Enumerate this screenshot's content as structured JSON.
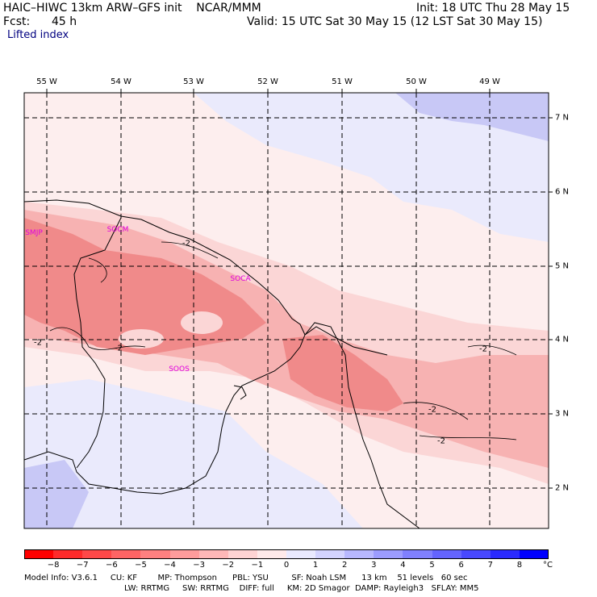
{
  "header": {
    "title_left": "HAIC–HIWC 13km ARW–GFS init    NCAR/MMM",
    "fcst_label": "Fcst:",
    "fcst_value": "45 h",
    "variable": "Lifted index",
    "init_text": "Init: 18 UTC Thu 28 May 15",
    "valid_text": "Valid: 15 UTC Sat 30 May 15 (12 LST Sat 30 May 15)"
  },
  "map": {
    "longitude_labels": [
      "55 W",
      "54 W",
      "53 W",
      "52 W",
      "51 W",
      "50 W",
      "49 W"
    ],
    "latitude_labels": [
      "7 N",
      "6 N",
      "5 N",
      "4 N",
      "3 N",
      "2 N"
    ],
    "stations": [
      {
        "id": "SMJP"
      },
      {
        "id": "SOCM"
      },
      {
        "id": "SOCA"
      },
      {
        "id": "SOOS"
      }
    ],
    "contour_labels": [
      "-2",
      "-2",
      "-2",
      "-2",
      "-2",
      "-2"
    ],
    "colors": {
      "strong_neg": "#f08a8a",
      "mid_neg": "#f7b2b2",
      "weak_neg": "#fbd6d6",
      "near_zero": "#fdeeee",
      "weak_pos": "#eaeafc",
      "mid_pos": "#c8c8f6",
      "strong_pos": "#9696ee"
    }
  },
  "colorbar": {
    "ticks": [
      "−8",
      "−7",
      "−6",
      "−5",
      "−4",
      "−3",
      "−2",
      "−1",
      "0",
      "1",
      "2",
      "3",
      "4",
      "5",
      "6",
      "7",
      "8"
    ],
    "unit": "°C",
    "colors": [
      "#ff0000",
      "#ff2a2a",
      "#ff4848",
      "#ff6464",
      "#ff8080",
      "#ff9c9c",
      "#ffb8b8",
      "#ffd4d4",
      "#ffeaea",
      "#eaeaff",
      "#d4d4ff",
      "#b8b8ff",
      "#9c9cff",
      "#8080ff",
      "#6464ff",
      "#4848ff",
      "#2a2aff",
      "#0000ff"
    ]
  },
  "footer": {
    "line1": "Model Info: V3.6.1     CU: KF        MP: Thompson      PBL: YSU         SF: Noah LSM      13 km    51 levels   60 sec",
    "line2": "LW: RRTMG     SW: RRTMG    DIFF: full     KM: 2D Smagor  DAMP: Rayleigh3   SFLAY: MM5"
  }
}
